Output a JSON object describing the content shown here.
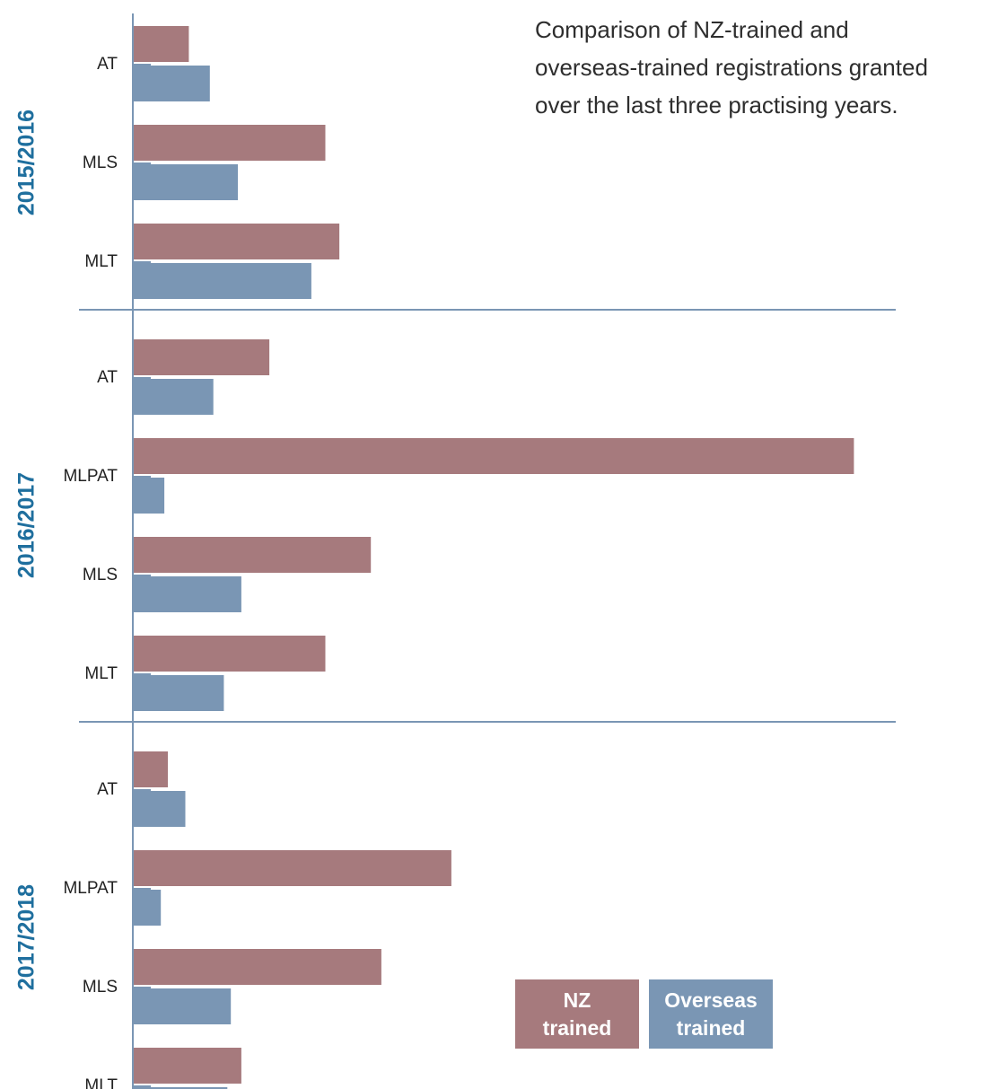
{
  "chart_data": {
    "type": "bar",
    "orientation": "horizontal",
    "title_lines": [
      "Comparison of NZ-trained and",
      "overseas-trained registrations granted",
      "over the last three practising years."
    ],
    "series": [
      {
        "name": "NZ trained",
        "legend_lines": [
          "NZ",
          "trained"
        ],
        "color": "#a67a7d"
      },
      {
        "name": "Overseas trained",
        "legend_lines": [
          "Overseas",
          "trained"
        ],
        "color": "#7a96b4"
      }
    ],
    "groups": [
      {
        "label": "2015/2016",
        "categories": [
          {
            "label": "AT",
            "values": [
              8,
              11
            ]
          },
          {
            "label": "MLS",
            "values": [
              27.5,
              15
            ]
          },
          {
            "label": "MLT",
            "values": [
              29.5,
              25.5
            ]
          }
        ]
      },
      {
        "label": "2016/2017",
        "categories": [
          {
            "label": "AT",
            "values": [
              19.5,
              11.5
            ]
          },
          {
            "label": "MLPAT",
            "values": [
              103,
              4.5
            ]
          },
          {
            "label": "MLS",
            "values": [
              34,
              15.5
            ]
          },
          {
            "label": "MLT",
            "values": [
              27.5,
              13
            ]
          }
        ]
      },
      {
        "label": "2017/2018",
        "categories": [
          {
            "label": "AT",
            "values": [
              5,
              7.5
            ]
          },
          {
            "label": "MLPAT",
            "values": [
              45.5,
              4
            ]
          },
          {
            "label": "MLS",
            "values": [
              35.5,
              14
            ]
          },
          {
            "label": "MLT",
            "values": [
              15.5,
              13.5
            ]
          }
        ]
      }
    ],
    "xlim": [
      0,
      110
    ],
    "grid": false,
    "legend_position": "bottom-right",
    "colors": {
      "axis": "#7a96b4",
      "group_label": "#1f6f9e",
      "category_label": "#222222",
      "separator": "#7a96b4"
    }
  }
}
